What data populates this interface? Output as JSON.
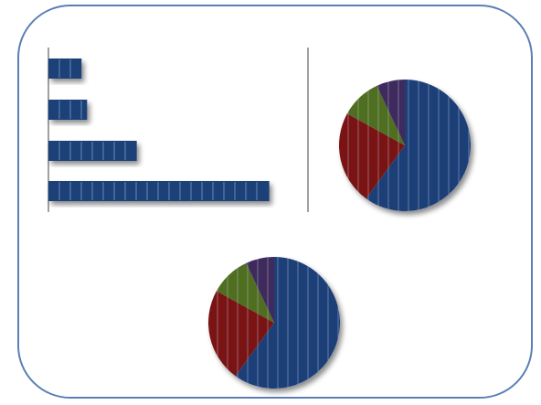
{
  "chart_data": [
    {
      "type": "bar",
      "orientation": "horizontal",
      "categories": [
        "",
        "",
        "",
        ""
      ],
      "values": [
        3,
        3.5,
        8,
        20
      ],
      "xlim": [
        0,
        24
      ],
      "grid": false,
      "legend": "none",
      "colors": {
        "fill": "#1c3f78",
        "stripe": "#8aa6cf"
      }
    },
    {
      "type": "pie",
      "slices": [
        {
          "value": 60,
          "color": "#1c3f78"
        },
        {
          "value": 23,
          "color": "#7a1414"
        },
        {
          "value": 10,
          "color": "#4f6e1f"
        },
        {
          "value": 7,
          "color": "#3e2a5c"
        }
      ],
      "legend": "none"
    },
    {
      "type": "pie",
      "slices": [
        {
          "value": 60,
          "color": "#1c3f78"
        },
        {
          "value": 23,
          "color": "#7a1414"
        },
        {
          "value": 10,
          "color": "#4f6e1f"
        },
        {
          "value": 7,
          "color": "#3e2a5c"
        }
      ],
      "legend": "none"
    }
  ],
  "colors": {
    "frame_border": "#5b7fb5",
    "axis": "#808080",
    "divider": "#808080",
    "shadow": "#000000"
  }
}
